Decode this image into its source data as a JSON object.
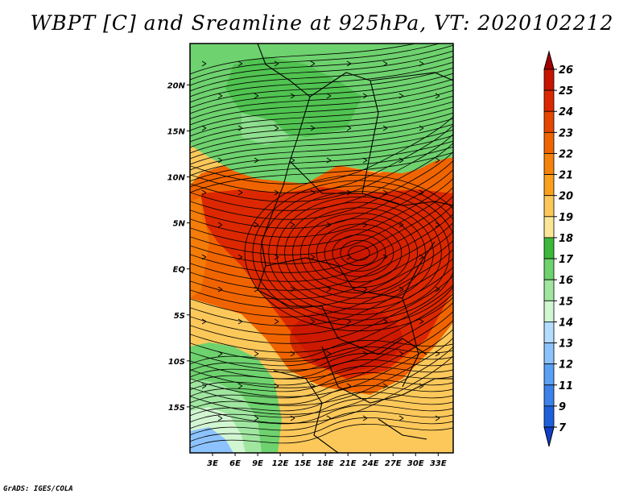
{
  "title": "WBPT [C] and Sreamline at 925hPa, VT: 2020102212",
  "footer": "GrADS: IGES/COLA",
  "map": {
    "lat_labels": [
      "20N",
      "15N",
      "10N",
      "5N",
      "EQ",
      "5S",
      "10S",
      "15S"
    ],
    "lon_labels": [
      "3E",
      "6E",
      "9E",
      "12E",
      "15E",
      "18E",
      "21E",
      "24E",
      "27E",
      "30E",
      "33E"
    ],
    "lat_values": [
      20,
      15,
      10,
      5,
      0,
      -5,
      -10,
      -15
    ],
    "lon_values": [
      3,
      6,
      9,
      12,
      15,
      18,
      21,
      24,
      27,
      30,
      33
    ],
    "lon_range": [
      0,
      35
    ],
    "lat_range": [
      -20,
      24.5
    ]
  },
  "colorbar": {
    "levels": [
      "26",
      "25",
      "24",
      "23",
      "22",
      "21",
      "20",
      "19",
      "18",
      "17",
      "16",
      "15",
      "14",
      "13",
      "12",
      "11",
      "9",
      "7"
    ],
    "colors": [
      "#a50000",
      "#c81400",
      "#dc2800",
      "#e64600",
      "#f06400",
      "#f5820a",
      "#faa01e",
      "#fcc85a",
      "#fae696",
      "#3cb93c",
      "#6ed26e",
      "#a0e6a0",
      "#d2f5d2",
      "#b4dcff",
      "#8cc3ff",
      "#5aa0f5",
      "#3c82eb",
      "#1e5fdc",
      "#1040c8"
    ]
  },
  "icons": {
    "colorbar_top": "triangle-up",
    "colorbar_bottom": "triangle-down"
  }
}
